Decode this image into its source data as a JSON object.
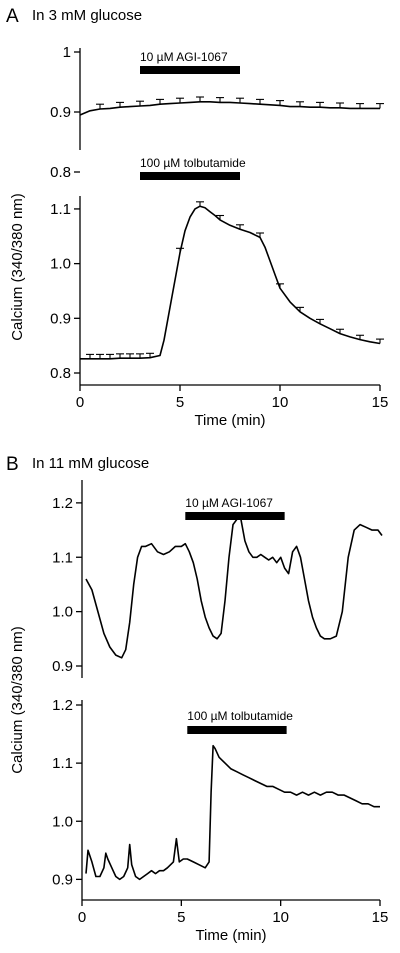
{
  "figure": {
    "panel_a": {
      "letter": "A",
      "title": "In 3 mM glucose"
    },
    "panel_b": {
      "letter": "B",
      "title": "In 11 mM glucose"
    },
    "y_label": "Calcium (340/380 nm)",
    "x_label": "Time (min)"
  },
  "chart_data": [
    {
      "type": "line",
      "panel": "A",
      "title": "In 3 mM glucose",
      "drug": "10 µM AGI-1067",
      "drug_interval": [
        3,
        8
      ],
      "ylim": [
        0.8,
        1.0
      ],
      "xlim": [
        0,
        15
      ],
      "y_ticks": [
        0.8,
        0.9,
        1
      ],
      "y_tick_labels": [
        "0.8",
        "0.9",
        "1"
      ],
      "x": [
        0,
        0.5,
        1,
        1.5,
        2,
        2.5,
        3,
        3.5,
        4,
        4.5,
        5,
        5.5,
        6,
        6.5,
        7,
        7.5,
        8,
        8.5,
        9,
        9.5,
        10,
        10.5,
        11,
        11.5,
        12,
        12.5,
        13,
        13.5,
        14,
        14.5,
        15
      ],
      "y": [
        0.895,
        0.902,
        0.905,
        0.906,
        0.908,
        0.909,
        0.91,
        0.911,
        0.913,
        0.914,
        0.915,
        0.916,
        0.917,
        0.917,
        0.916,
        0.916,
        0.915,
        0.914,
        0.913,
        0.912,
        0.911,
        0.909,
        0.909,
        0.908,
        0.908,
        0.907,
        0.907,
        0.906,
        0.906,
        0.906,
        0.906
      ],
      "error_x": [
        1,
        2,
        3,
        4,
        5,
        6,
        7,
        8,
        9,
        10,
        11,
        12,
        13,
        14,
        15
      ],
      "error_y": [
        0.905,
        0.908,
        0.91,
        0.913,
        0.915,
        0.917,
        0.916,
        0.915,
        0.913,
        0.911,
        0.909,
        0.908,
        0.907,
        0.906,
        0.906
      ],
      "error_size": 0.008
    },
    {
      "type": "line",
      "panel": "A",
      "drug": "100 µM tolbutamide",
      "drug_interval": [
        3,
        8
      ],
      "ylim": [
        0.8,
        1.12
      ],
      "xlim": [
        0,
        15
      ],
      "y_ticks": [
        0.8,
        0.9,
        1.0,
        1.1
      ],
      "y_tick_labels": [
        "0.8",
        "0.9",
        "1.0",
        "1.1"
      ],
      "x_ticks": [
        0,
        5,
        10,
        15
      ],
      "x_tick_labels": [
        "0",
        "5",
        "10",
        "15"
      ],
      "xlabel": "Time (min)",
      "x": [
        0,
        0.5,
        1,
        1.5,
        2,
        2.5,
        3,
        3.5,
        4,
        4.2,
        4.4,
        4.6,
        4.8,
        5,
        5.25,
        5.5,
        5.75,
        6,
        6.25,
        6.5,
        6.75,
        7,
        7.5,
        8,
        8.5,
        9,
        9.25,
        9.5,
        9.75,
        10,
        10.5,
        11,
        11.5,
        12,
        12.5,
        13,
        13.5,
        14,
        14.5,
        15
      ],
      "y": [
        0.826,
        0.826,
        0.826,
        0.826,
        0.827,
        0.827,
        0.827,
        0.828,
        0.832,
        0.86,
        0.9,
        0.94,
        0.98,
        1.02,
        1.06,
        1.085,
        1.1,
        1.105,
        1.102,
        1.095,
        1.088,
        1.08,
        1.07,
        1.063,
        1.057,
        1.048,
        1.03,
        1.005,
        0.98,
        0.955,
        0.93,
        0.912,
        0.9,
        0.89,
        0.881,
        0.872,
        0.866,
        0.861,
        0.857,
        0.854
      ],
      "error_x": [
        0.5,
        1,
        1.5,
        2,
        2.5,
        3,
        3.5,
        5,
        6,
        7,
        8,
        9,
        10,
        11,
        12,
        13,
        14,
        15
      ],
      "error_y": [
        0.826,
        0.826,
        0.826,
        0.827,
        0.827,
        0.827,
        0.828,
        1.02,
        1.105,
        1.08,
        1.063,
        1.048,
        0.955,
        0.912,
        0.89,
        0.872,
        0.861,
        0.854
      ],
      "error_size": 0.008
    },
    {
      "type": "line",
      "panel": "B",
      "title": "In 11 mM glucose",
      "drug": "10 µM AGI-1067",
      "drug_interval": [
        5.2,
        10.2
      ],
      "ylim": [
        0.9,
        1.22
      ],
      "xlim": [
        0,
        15
      ],
      "y_ticks": [
        0.9,
        1.0,
        1.1,
        1.2
      ],
      "y_tick_labels": [
        "0.9",
        "1.0",
        "1.1",
        "1.2"
      ],
      "x": [
        0.2,
        0.5,
        0.8,
        1.1,
        1.4,
        1.7,
        2.0,
        2.2,
        2.4,
        2.6,
        2.8,
        3.0,
        3.2,
        3.5,
        3.8,
        4.1,
        4.4,
        4.7,
        5.0,
        5.2,
        5.4,
        5.6,
        5.8,
        6.0,
        6.2,
        6.4,
        6.6,
        6.8,
        7.0,
        7.2,
        7.4,
        7.6,
        7.8,
        8.0,
        8.2,
        8.4,
        8.6,
        8.8,
        9.0,
        9.2,
        9.4,
        9.6,
        9.8,
        10.0,
        10.2,
        10.4,
        10.6,
        10.8,
        11.0,
        11.2,
        11.4,
        11.6,
        11.8,
        12.0,
        12.2,
        12.5,
        12.8,
        13.1,
        13.4,
        13.7,
        14.0,
        14.3,
        14.6,
        14.9,
        15.1
      ],
      "y": [
        1.06,
        1.04,
        1.0,
        0.96,
        0.935,
        0.92,
        0.915,
        0.93,
        0.98,
        1.05,
        1.1,
        1.12,
        1.12,
        1.125,
        1.11,
        1.105,
        1.11,
        1.12,
        1.12,
        1.125,
        1.11,
        1.09,
        1.06,
        1.02,
        0.99,
        0.97,
        0.955,
        0.95,
        0.96,
        1.02,
        1.1,
        1.16,
        1.17,
        1.17,
        1.13,
        1.11,
        1.1,
        1.1,
        1.105,
        1.1,
        1.095,
        1.1,
        1.09,
        1.1,
        1.08,
        1.07,
        1.11,
        1.12,
        1.1,
        1.06,
        1.02,
        0.99,
        0.97,
        0.955,
        0.95,
        0.95,
        0.955,
        1.0,
        1.1,
        1.15,
        1.16,
        1.155,
        1.15,
        1.15,
        1.14
      ],
      "x_ticks": [],
      "x_tick_labels": []
    },
    {
      "type": "line",
      "panel": "B",
      "drug": "100 µM tolbutamide",
      "drug_interval": [
        5.3,
        10.3
      ],
      "ylim": [
        0.88,
        1.2
      ],
      "xlim": [
        0,
        15
      ],
      "y_ticks": [
        0.9,
        1.0,
        1.1,
        1.2
      ],
      "y_tick_labels": [
        "0.9",
        "1.0",
        "1.1",
        "1.2"
      ],
      "x_ticks": [
        0,
        5,
        10,
        15
      ],
      "x_tick_labels": [
        "0",
        "5",
        "10",
        "15"
      ],
      "xlabel": "Time (min)",
      "x": [
        0.2,
        0.3,
        0.5,
        0.7,
        0.9,
        1.1,
        1.2,
        1.3,
        1.5,
        1.7,
        1.9,
        2.1,
        2.3,
        2.4,
        2.5,
        2.7,
        2.9,
        3.1,
        3.3,
        3.5,
        3.7,
        3.9,
        4.1,
        4.3,
        4.6,
        4.75,
        4.9,
        5.1,
        5.3,
        5.6,
        5.9,
        6.2,
        6.4,
        6.5,
        6.6,
        6.7,
        6.9,
        7.2,
        7.5,
        7.8,
        8.1,
        8.4,
        8.7,
        9.0,
        9.3,
        9.6,
        9.9,
        10.2,
        10.5,
        10.8,
        11.1,
        11.4,
        11.7,
        12.0,
        12.3,
        12.6,
        12.9,
        13.2,
        13.5,
        13.8,
        14.1,
        14.4,
        14.7,
        15.0
      ],
      "y": [
        0.91,
        0.95,
        0.93,
        0.905,
        0.905,
        0.92,
        0.945,
        0.935,
        0.92,
        0.905,
        0.9,
        0.905,
        0.92,
        0.96,
        0.925,
        0.905,
        0.9,
        0.905,
        0.91,
        0.915,
        0.91,
        0.915,
        0.915,
        0.92,
        0.93,
        0.97,
        0.93,
        0.935,
        0.935,
        0.93,
        0.925,
        0.92,
        0.93,
        1.05,
        1.13,
        1.125,
        1.11,
        1.1,
        1.09,
        1.085,
        1.08,
        1.075,
        1.07,
        1.065,
        1.06,
        1.06,
        1.055,
        1.05,
        1.05,
        1.045,
        1.05,
        1.045,
        1.05,
        1.045,
        1.05,
        1.05,
        1.045,
        1.045,
        1.04,
        1.035,
        1.03,
        1.03,
        1.025,
        1.025
      ]
    }
  ]
}
